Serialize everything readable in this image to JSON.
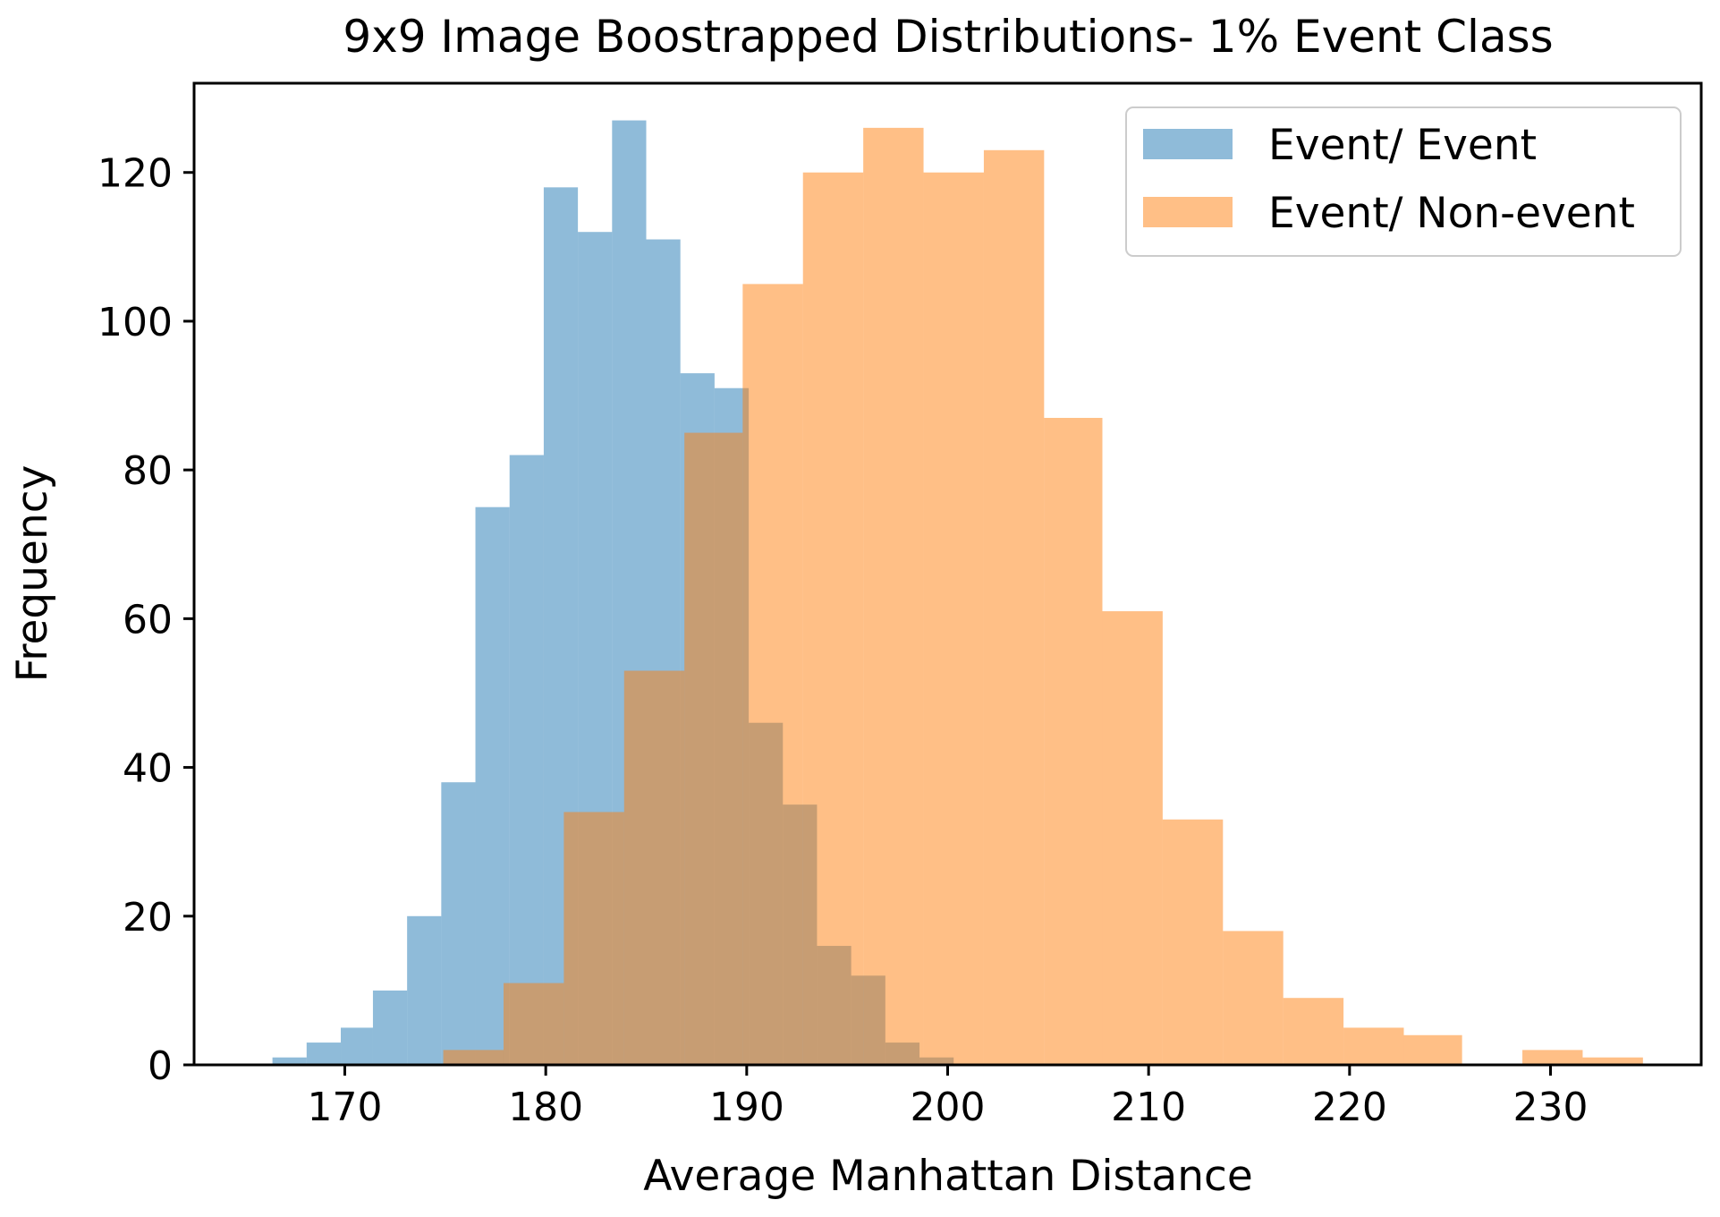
{
  "chart_data": {
    "type": "bar",
    "title": "9x9 Image Boostrapped Distributions- 1% Event Class",
    "xlabel": "Average Manhattan Distance",
    "ylabel": "Frequency",
    "xlim": [
      162.5,
      237.5
    ],
    "ylim": [
      0,
      132
    ],
    "xticks": [
      170,
      180,
      190,
      200,
      210,
      220,
      230
    ],
    "yticks": [
      0,
      20,
      40,
      60,
      80,
      100,
      120
    ],
    "legend_position": "top-right",
    "grid": false,
    "series": [
      {
        "name": "Event/ Event",
        "color": "#1f77b4",
        "opacity": 0.5,
        "bin_edges": [
          166.4,
          168.1,
          169.8,
          171.4,
          173.1,
          174.8,
          176.5,
          178.2,
          179.9,
          181.6,
          183.3,
          185.0,
          186.7,
          188.4,
          190.1,
          191.8,
          193.5,
          195.2,
          196.9,
          198.6,
          200.3
        ],
        "counts": [
          1,
          3,
          5,
          10,
          20,
          38,
          75,
          82,
          118,
          112,
          127,
          111,
          93,
          91,
          46,
          35,
          16,
          12,
          3,
          1
        ]
      },
      {
        "name": "Event/ Non-event",
        "color": "#ff7f0e",
        "opacity": 0.5,
        "bin_edges": [
          174.9,
          177.9,
          180.9,
          183.9,
          186.9,
          189.8,
          192.8,
          195.8,
          198.8,
          201.8,
          204.8,
          207.7,
          210.7,
          213.7,
          216.7,
          219.7,
          222.7,
          225.6,
          228.6,
          231.6,
          234.6
        ],
        "counts": [
          2,
          11,
          34,
          53,
          85,
          105,
          120,
          126,
          120,
          123,
          87,
          61,
          33,
          18,
          9,
          5,
          4,
          0,
          2,
          1
        ]
      }
    ]
  }
}
